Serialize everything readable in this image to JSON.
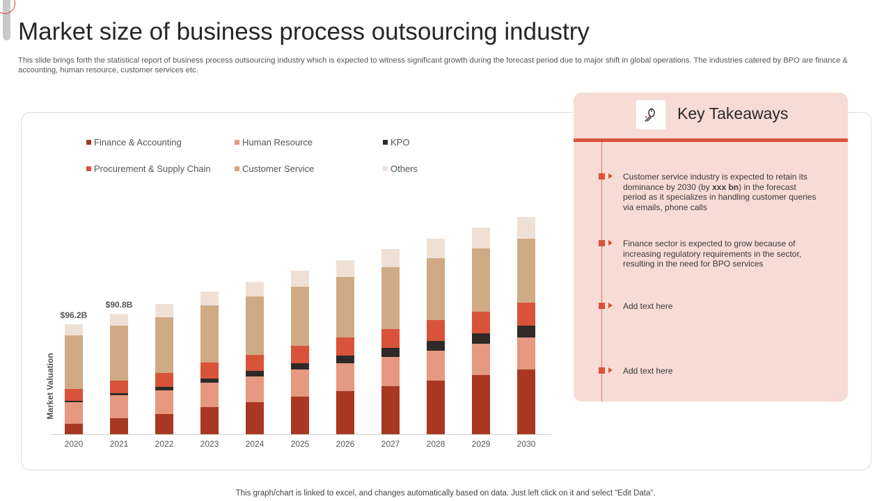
{
  "title": "Market size of business process outsourcing industry",
  "subtitle": "This slide brings forth the statistical report of business process outsourcing industry which is expected to witness significant growth during the forecast period due to major shift in global operations. The industries catered by BPO are finance & accounting, human resource, customer services etc.",
  "chart_data": {
    "type": "bar",
    "stacked": true,
    "categories": [
      "2020",
      "2021",
      "2022",
      "2023",
      "2024",
      "2025",
      "2026",
      "2027",
      "2028",
      "2029",
      "2030"
    ],
    "ylabel": "Market Valuation",
    "xlabel": "",
    "ylim": [
      0,
      320
    ],
    "grid": false,
    "legend_position": "top-left",
    "series": [
      {
        "name": "Finance & Accounting",
        "color": "#a83822",
        "values": [
          15,
          23,
          29,
          39,
          46,
          54,
          62,
          69,
          77,
          85,
          93
        ]
      },
      {
        "name": "Human Resource",
        "color": "#e69880",
        "values": [
          31,
          33,
          34,
          35,
          37,
          39,
          40,
          42,
          43,
          45,
          46
        ]
      },
      {
        "name": "KPO",
        "color": "#2f2a28",
        "values": [
          2,
          3,
          5,
          6,
          8,
          9,
          11,
          13,
          14,
          15,
          17
        ]
      },
      {
        "name": "Procurement & Supply Chain",
        "color": "#d9533a",
        "values": [
          17,
          18,
          20,
          23,
          23,
          25,
          26,
          27,
          30,
          31,
          33
        ]
      },
      {
        "name": "Customer Service",
        "color": "#cfaa85",
        "values": [
          77,
          79,
          80,
          82,
          84,
          85,
          87,
          89,
          89,
          91,
          92
        ]
      },
      {
        "name": "Others",
        "color": "#efe0d6",
        "values": [
          16,
          17,
          19,
          20,
          21,
          23,
          24,
          26,
          28,
          30,
          31
        ]
      }
    ],
    "data_labels": [
      {
        "category": "2020",
        "text": "$96.2B"
      },
      {
        "category": "2021",
        "text": "$90.8B"
      }
    ]
  },
  "key_takeaways": {
    "icon": "thumbs-up-mouse-icon",
    "title": "Key Takeaways",
    "items": [
      {
        "pre": "Customer service industry is expected to retain its dominance by 2030 (by ",
        "bold": "xxx bn",
        "post": ") in the forecast period as it specializes in handling customer queries via emails, phone calls"
      },
      {
        "pre": "Finance sector is expected to grow because of increasing regulatory requirements in the sector, resulting in the need for BPO services",
        "bold": "",
        "post": ""
      },
      {
        "pre": "Add text here",
        "bold": "",
        "post": ""
      },
      {
        "pre": "Add text here",
        "bold": "",
        "post": ""
      }
    ]
  },
  "footer": "This graph/chart is linked to excel,  and changes automatically based on data. Just left click on it and select “Edit Data”."
}
